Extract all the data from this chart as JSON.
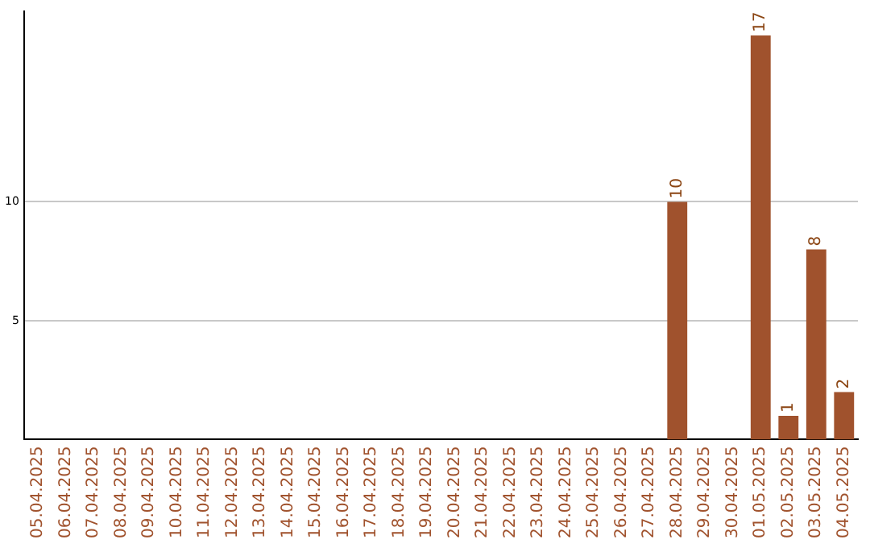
{
  "chart_data": {
    "type": "bar",
    "categories": [
      "05.04.2025",
      "06.04.2025",
      "07.04.2025",
      "08.04.2025",
      "09.04.2025",
      "10.04.2025",
      "11.04.2025",
      "12.04.2025",
      "13.04.2025",
      "14.04.2025",
      "15.04.2025",
      "16.04.2025",
      "17.04.2025",
      "18.04.2025",
      "19.04.2025",
      "20.04.2025",
      "21.04.2025",
      "22.04.2025",
      "23.04.2025",
      "24.04.2025",
      "25.04.2025",
      "26.04.2025",
      "27.04.2025",
      "28.04.2025",
      "29.04.2025",
      "30.04.2025",
      "01.05.2025",
      "02.05.2025",
      "03.05.2025",
      "04.05.2025"
    ],
    "values": [
      0,
      0,
      0,
      0,
      0,
      0,
      0,
      0,
      0,
      0,
      0,
      0,
      0,
      0,
      0,
      0,
      0,
      0,
      0,
      0,
      0,
      0,
      0,
      10,
      0,
      0,
      17,
      1,
      8,
      2
    ],
    "value_labels": [
      null,
      null,
      null,
      null,
      null,
      null,
      null,
      null,
      null,
      null,
      null,
      null,
      null,
      null,
      null,
      null,
      null,
      null,
      null,
      null,
      null,
      null,
      null,
      "10",
      null,
      null,
      "17",
      "1",
      "8",
      "2"
    ],
    "color": "#a0522d",
    "ylim": [
      0,
      18
    ],
    "yticks": [
      5,
      10
    ],
    "grid": "y",
    "legend": false
  }
}
